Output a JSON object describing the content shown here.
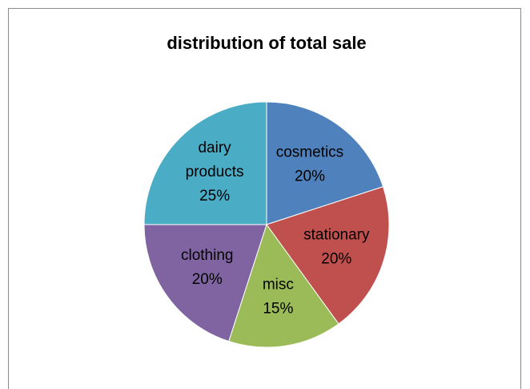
{
  "chart_data": {
    "type": "pie",
    "title": "distribution of total sale",
    "categories": [
      "cosmetics",
      "stationary",
      "misc",
      "clothing",
      "dairy products"
    ],
    "values": [
      20,
      20,
      15,
      20,
      25
    ],
    "value_labels": [
      "20%",
      "20%",
      "15%",
      "20%",
      "25%"
    ],
    "colors": [
      "#4f81bd",
      "#c0504d",
      "#9bbb59",
      "#8064a2",
      "#4bacc6"
    ]
  }
}
